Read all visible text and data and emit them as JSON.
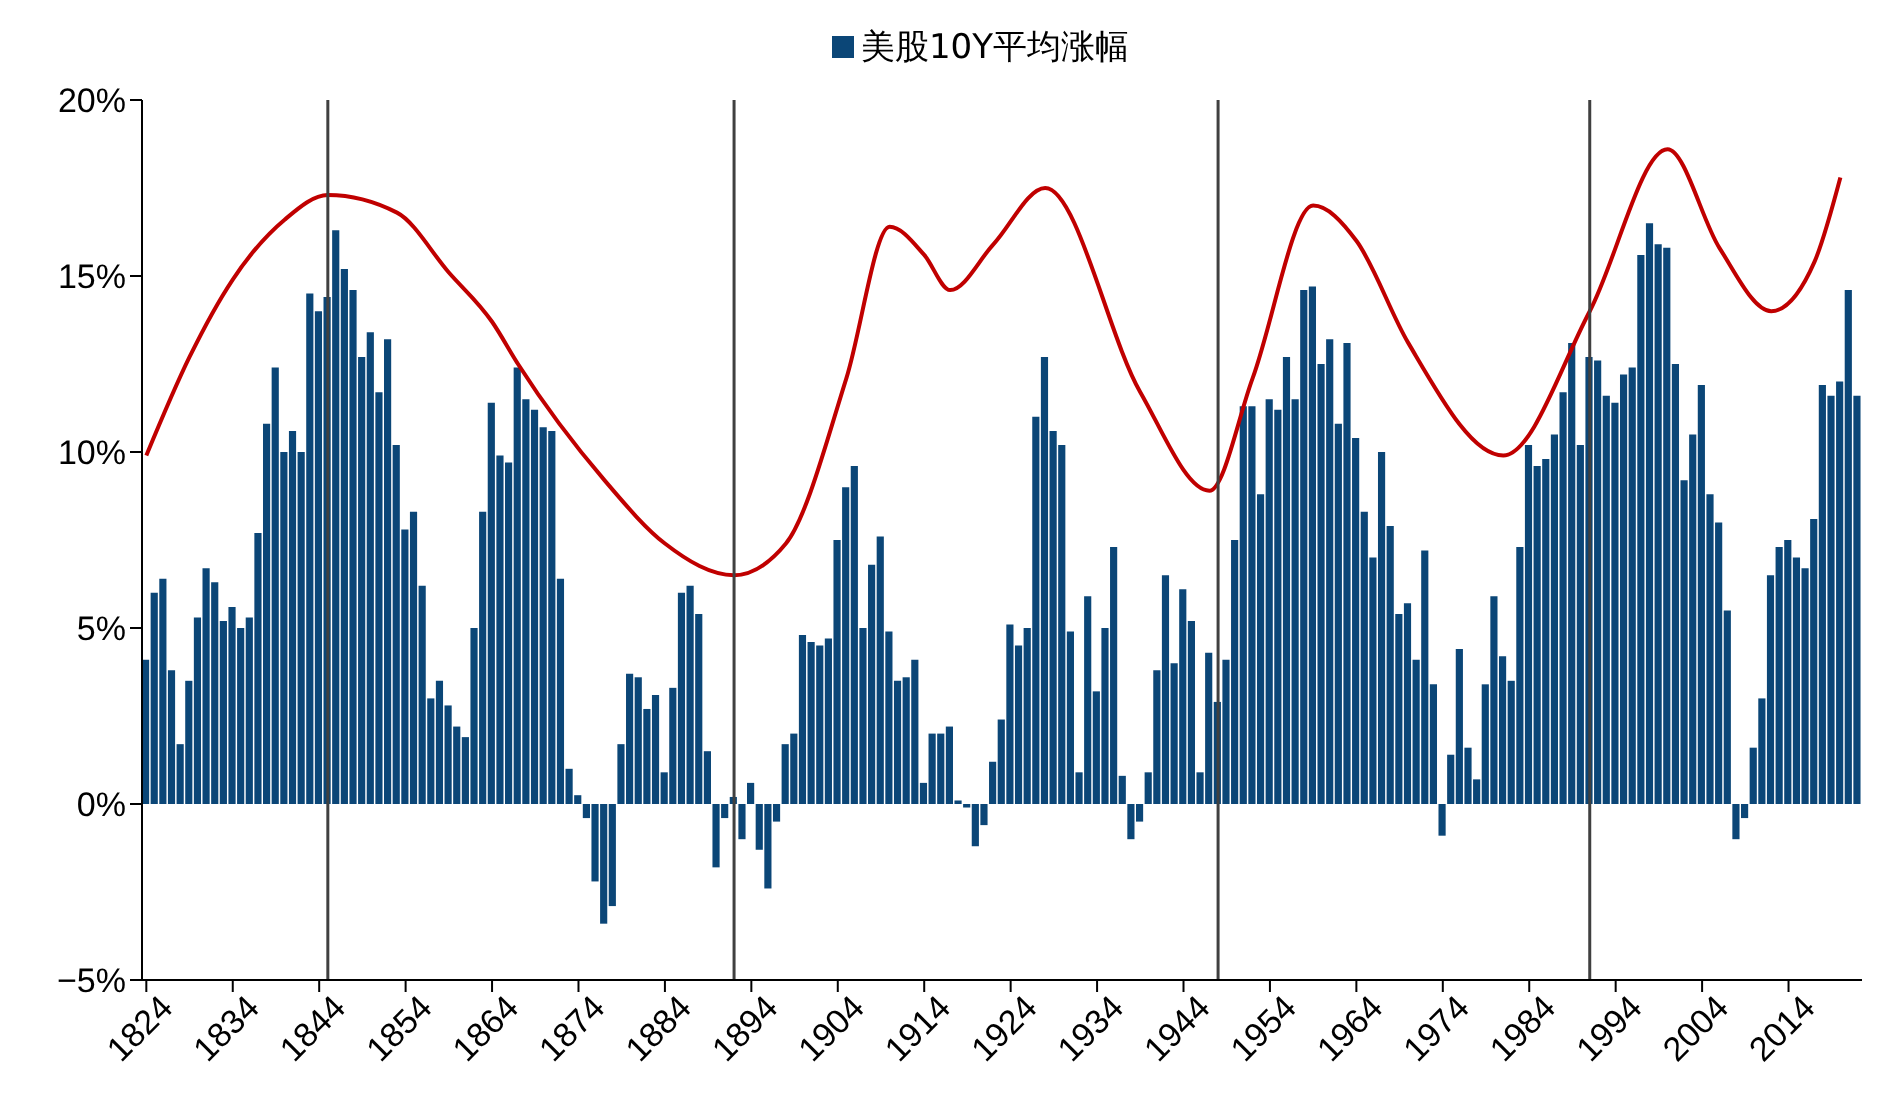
{
  "chart_data": {
    "type": "bar",
    "x": [
      1824,
      1825,
      1826,
      1827,
      1828,
      1829,
      1830,
      1831,
      1832,
      1833,
      1834,
      1835,
      1836,
      1837,
      1838,
      1839,
      1840,
      1841,
      1842,
      1843,
      1844,
      1845,
      1846,
      1847,
      1848,
      1849,
      1850,
      1851,
      1852,
      1853,
      1854,
      1855,
      1856,
      1857,
      1858,
      1859,
      1860,
      1861,
      1862,
      1863,
      1864,
      1865,
      1866,
      1867,
      1868,
      1869,
      1870,
      1871,
      1872,
      1873,
      1874,
      1875,
      1876,
      1877,
      1878,
      1879,
      1880,
      1881,
      1882,
      1883,
      1884,
      1885,
      1886,
      1887,
      1888,
      1889,
      1890,
      1891,
      1892,
      1893,
      1894,
      1895,
      1896,
      1897,
      1898,
      1899,
      1900,
      1901,
      1902,
      1903,
      1904,
      1905,
      1906,
      1907,
      1908,
      1909,
      1910,
      1911,
      1912,
      1913,
      1914,
      1915,
      1916,
      1917,
      1918,
      1919,
      1920,
      1921,
      1922,
      1923,
      1924,
      1925,
      1926,
      1927,
      1928,
      1929,
      1930,
      1931,
      1932,
      1933,
      1934,
      1935,
      1936,
      1937,
      1938,
      1939,
      1940,
      1941,
      1942,
      1943,
      1944,
      1945,
      1946,
      1947,
      1948,
      1949,
      1950,
      1951,
      1952,
      1953,
      1954,
      1955,
      1956,
      1957,
      1958,
      1959,
      1960,
      1961,
      1962,
      1963,
      1964,
      1965,
      1966,
      1967,
      1968,
      1969,
      1970,
      1971,
      1972,
      1973,
      1974,
      1975,
      1976,
      1977,
      1978,
      1979,
      1980,
      1981,
      1982,
      1983,
      1984,
      1985,
      1986,
      1987,
      1988,
      1989,
      1990,
      1991,
      1992,
      1993,
      1994,
      1995,
      1996,
      1997,
      1998,
      1999,
      2000,
      2001,
      2002,
      2003,
      2004,
      2005,
      2006,
      2007,
      2008,
      2009,
      2010,
      2011,
      2012,
      2013,
      2014,
      2015,
      2016,
      2017,
      2018,
      2019,
      2020,
      2021,
      2022
    ],
    "series": [
      {
        "name": "美股10Y平均涨幅",
        "color": "#0b4677",
        "values": [
          4.1,
          6.0,
          6.4,
          3.8,
          1.7,
          3.5,
          5.3,
          6.7,
          6.3,
          5.2,
          5.6,
          5.0,
          5.3,
          7.7,
          10.8,
          12.4,
          10.0,
          10.6,
          10.0,
          14.5,
          14.0,
          14.4,
          16.3,
          15.2,
          14.6,
          12.7,
          13.4,
          11.7,
          13.2,
          10.2,
          7.8,
          8.3,
          6.2,
          3.0,
          3.5,
          2.8,
          2.2,
          1.9,
          5.0,
          8.3,
          11.4,
          9.9,
          9.7,
          12.4,
          11.5,
          11.2,
          10.7,
          10.6,
          6.4,
          1.0,
          0.25,
          -0.4,
          -2.2,
          -3.4,
          -2.9,
          1.7,
          3.7,
          3.6,
          2.7,
          3.1,
          0.9,
          3.3,
          6.0,
          6.2,
          5.4,
          1.5,
          -1.8,
          -0.4,
          0.2,
          -1.0,
          0.6,
          -1.3,
          -2.4,
          -0.5,
          1.7,
          2.0,
          4.8,
          4.6,
          4.5,
          4.7,
          7.5,
          9.0,
          9.6,
          5.0,
          6.8,
          7.6,
          4.9,
          3.5,
          3.6,
          4.1,
          0.6,
          2.0,
          2.0,
          2.2,
          0.1,
          -0.1,
          -1.2,
          -0.6,
          1.2,
          2.4,
          5.1,
          4.5,
          5.0,
          11.0,
          12.7,
          10.6,
          10.2,
          4.9,
          0.9,
          5.9,
          3.2,
          5.0,
          7.3,
          0.8,
          -1.0,
          -0.5,
          0.9,
          3.8,
          6.5,
          4.0,
          6.1,
          5.2,
          0.9,
          4.3,
          2.9,
          4.1,
          7.5,
          11.3,
          11.3,
          8.8,
          11.5,
          11.2,
          12.7,
          11.5,
          14.6,
          14.7,
          12.5,
          13.2,
          10.8,
          13.1,
          10.4,
          8.3,
          7.0,
          10.0,
          7.9,
          5.4,
          5.7,
          4.1,
          7.2,
          3.4,
          -0.9,
          1.4,
          4.4,
          1.6,
          0.7,
          3.4,
          5.9,
          4.2,
          3.5,
          7.3,
          10.2,
          9.6,
          9.8,
          10.5,
          11.7,
          13.1,
          10.2,
          12.7,
          12.6,
          11.6,
          11.4,
          12.2,
          12.4,
          15.6,
          16.5,
          15.9,
          15.8,
          12.5,
          9.2,
          10.5,
          11.9,
          8.8,
          8.0,
          5.5,
          -1.0,
          -0.4,
          1.6,
          3.0,
          6.5,
          7.3,
          7.5,
          7.0,
          6.7,
          8.1,
          11.9,
          11.6,
          12.0,
          14.6,
          11.6
        ]
      },
      {
        "type": "line",
        "color": "#c00000",
        "x": [
          1824,
          1829,
          1834,
          1840,
          1845,
          1853,
          1859,
          1864,
          1867,
          1877,
          1884,
          1892,
          1898,
          1905,
          1910,
          1914,
          1917,
          1922,
          1928,
          1939,
          1947,
          1952,
          1959,
          1964,
          1970,
          1981,
          1991,
          2000,
          2006,
          2012,
          2017,
          2020
        ],
        "values": [
          9.9,
          12.7,
          14.9,
          16.6,
          17.3,
          16.8,
          15.1,
          13.7,
          12.5,
          9.2,
          7.4,
          6.5,
          7.4,
          12.1,
          16.4,
          15.6,
          14.6,
          15.9,
          17.5,
          11.7,
          8.9,
          12.1,
          17.0,
          16.0,
          13.1,
          9.9,
          14.0,
          18.6,
          15.8,
          14.0,
          15.4,
          17.8
        ]
      }
    ],
    "ref_lines": [
      {
        "axis": "x",
        "value": 1845,
        "color": "#404040"
      },
      {
        "axis": "x",
        "value": 1892,
        "color": "#404040"
      },
      {
        "axis": "x",
        "value": 1948,
        "color": "#404040"
      },
      {
        "axis": "x",
        "value": 1991,
        "color": "#404040"
      }
    ],
    "xlim": [
      1823.5,
      2022.5
    ],
    "xticks": [
      1824,
      1834,
      1844,
      1854,
      1864,
      1874,
      1884,
      1894,
      1904,
      1914,
      1924,
      1934,
      1944,
      1954,
      1964,
      1974,
      1984,
      1994,
      2004,
      2014
    ],
    "ylim": [
      -5,
      20
    ],
    "yticks": [
      {
        "value": -5,
        "label": "−5%"
      },
      {
        "value": 0,
        "label": "0%"
      },
      {
        "value": 5,
        "label": "5%"
      },
      {
        "value": 10,
        "label": "10%"
      },
      {
        "value": 15,
        "label": "15%"
      },
      {
        "value": 20,
        "label": "20%"
      }
    ],
    "grid": false,
    "legend": "top"
  }
}
